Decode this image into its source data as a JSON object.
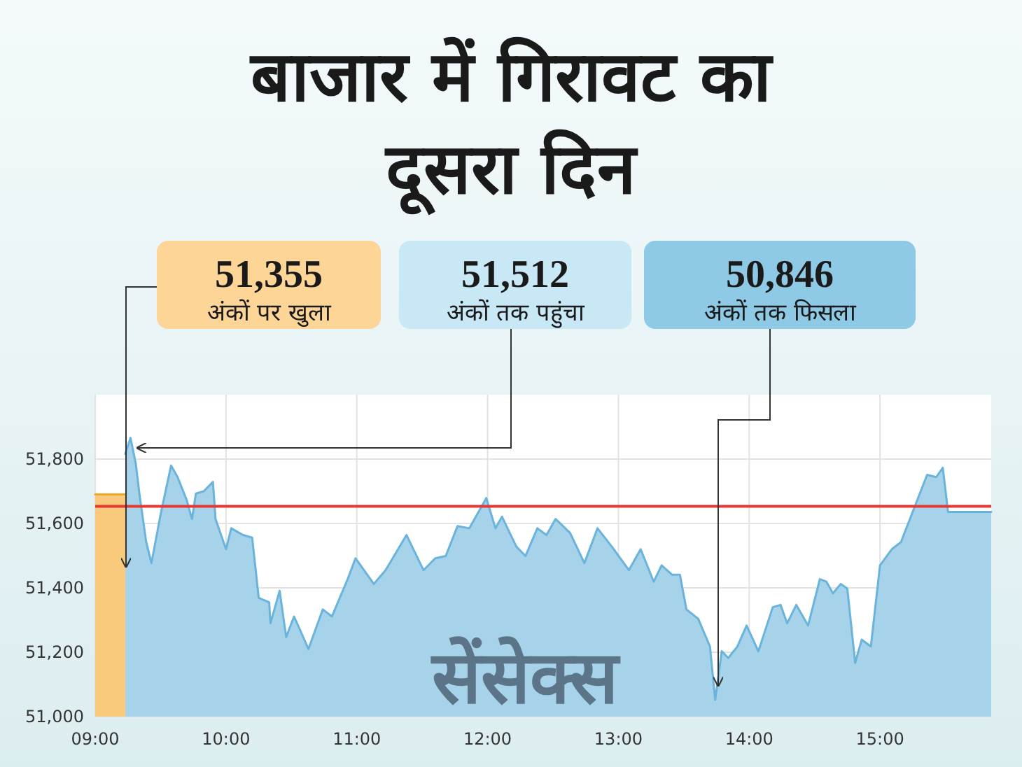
{
  "chart_data": {
    "type": "area",
    "title": "बाजार में गिरावट का दूसरा दिन",
    "annotations": [
      "51,355\nअंकों पर खुला",
      "51,512\nअंकों तक पहुंचा",
      "50,846\nअंकों तक फिसला",
      "सेंसेक्स"
    ],
    "xlim": [
      9,
      15.85
    ],
    "xticks": [
      {
        "value": 9,
        "label": "09:00"
      },
      {
        "value": 10,
        "label": "10:00"
      },
      {
        "value": 11,
        "label": "11:00"
      },
      {
        "value": 12,
        "label": "12:00"
      },
      {
        "value": 13,
        "label": "13:00"
      },
      {
        "value": 14,
        "label": "14:00"
      },
      {
        "value": 15,
        "label": "15:00"
      }
    ],
    "ylim": [
      51000,
      52000
    ],
    "yticks": [
      {
        "value": 51000,
        "label": "51,000"
      },
      {
        "value": 51200,
        "label": "51,200"
      },
      {
        "value": 51400,
        "label": "51,400"
      },
      {
        "value": 51600,
        "label": "51,600"
      },
      {
        "value": 51800,
        "label": "51,800"
      }
    ],
    "grid": true,
    "ref_lines": [
      {
        "axis": "y",
        "value": 51653,
        "color": "#e53935"
      }
    ],
    "series": [
      {
        "color": "#f5a623",
        "x": [
          9,
          9.23
        ],
        "values": [
          51690,
          51690
        ]
      },
      {
        "color": "#6ab4dc",
        "x": [
          9.23,
          9.27,
          9.31,
          9.34,
          9.39,
          9.43,
          9.5,
          9.58,
          9.63,
          9.7,
          9.74,
          9.77,
          9.83,
          9.9,
          9.92,
          10,
          10.04,
          10.13,
          10.2,
          10.25,
          10.33,
          10.34,
          10.41,
          10.46,
          10.52,
          10.56,
          10.63,
          10.74,
          10.81,
          10.93,
          10.99,
          11.13,
          11.22,
          11.38,
          11.51,
          11.6,
          11.68,
          11.77,
          11.86,
          11.99,
          12.06,
          12.11,
          12.22,
          12.29,
          12.38,
          12.45,
          12.52,
          12.63,
          12.74,
          12.84,
          12.95,
          13.08,
          13.17,
          13.27,
          13.33,
          13.41,
          13.47,
          13.52,
          13.61,
          13.7,
          13.74,
          13.79,
          13.84,
          13.91,
          13.98,
          14.07,
          14.18,
          14.24,
          14.29,
          14.36,
          14.45,
          14.54,
          14.59,
          14.64,
          14.7,
          14.75,
          14.81,
          14.86,
          14.93,
          15,
          15.09,
          15.16,
          15.27,
          15.36,
          15.43,
          15.48,
          15.52,
          15.85
        ],
        "values": [
          51816,
          51866,
          51787,
          51686,
          51542,
          51477,
          51628,
          51780,
          51744,
          51672,
          51614,
          51693,
          51700,
          51729,
          51614,
          51520,
          51585,
          51564,
          51556,
          51369,
          51355,
          51290,
          51391,
          51247,
          51311,
          51275,
          51210,
          51333,
          51311,
          51427,
          51492,
          51412,
          51455,
          51564,
          51455,
          51492,
          51499,
          51592,
          51585,
          51679,
          51585,
          51621,
          51528,
          51499,
          51585,
          51564,
          51614,
          51571,
          51477,
          51585,
          51528,
          51455,
          51520,
          51419,
          51470,
          51441,
          51441,
          51333,
          51304,
          51218,
          51052,
          51203,
          51182,
          51218,
          51283,
          51203,
          51340,
          51347,
          51290,
          51347,
          51283,
          51427,
          51419,
          51383,
          51412,
          51398,
          51167,
          51239,
          51218,
          51470,
          51520,
          51542,
          51657,
          51751,
          51744,
          51773,
          51636,
          51636
        ]
      }
    ]
  }
}
